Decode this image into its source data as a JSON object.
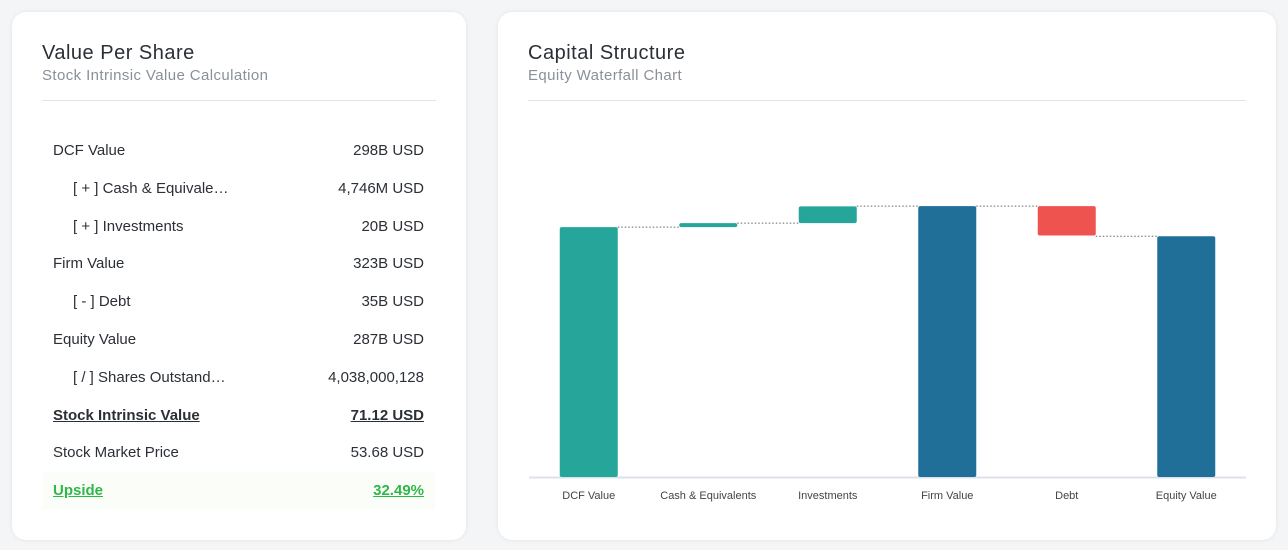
{
  "left_card": {
    "title": "Value Per Share",
    "subtitle": "Stock Intrinsic Value Calculation",
    "rows": [
      {
        "label": "DCF Value",
        "value": "298B USD"
      },
      {
        "label": "[ + ] Cash & Equivale…",
        "value": "4,746M USD"
      },
      {
        "label": "[ + ] Investments",
        "value": "20B USD"
      },
      {
        "label": "Firm Value",
        "value": "323B USD"
      },
      {
        "label": "[ - ] Debt",
        "value": "35B USD"
      },
      {
        "label": "Equity Value",
        "value": "287B USD"
      },
      {
        "label": "[ / ] Shares Outstand…",
        "value": "4,038,000,128"
      },
      {
        "label": "Stock Intrinsic Value",
        "value": "71.12 USD"
      },
      {
        "label": "Stock Market Price",
        "value": "53.68 USD"
      },
      {
        "label": "Upside",
        "value": "32.49%"
      }
    ]
  },
  "chart_data": {
    "type": "waterfall",
    "title": "Capital Structure",
    "subtitle": "Equity Waterfall Chart",
    "categories": [
      "DCF Value",
      "Cash & Equivalents",
      "Investments",
      "Firm Value",
      "Debt",
      "Equity Value"
    ],
    "values": [
      298,
      4.746,
      20,
      323,
      -35,
      287
    ],
    "measure": [
      "absolute",
      "relative",
      "relative",
      "absolute",
      "relative",
      "absolute"
    ],
    "colors": [
      "#26a69a",
      "#26a69a",
      "#26a69a",
      "#1f6f98",
      "#ef5350",
      "#1f6f98"
    ],
    "ylim": [
      0,
      440
    ]
  }
}
